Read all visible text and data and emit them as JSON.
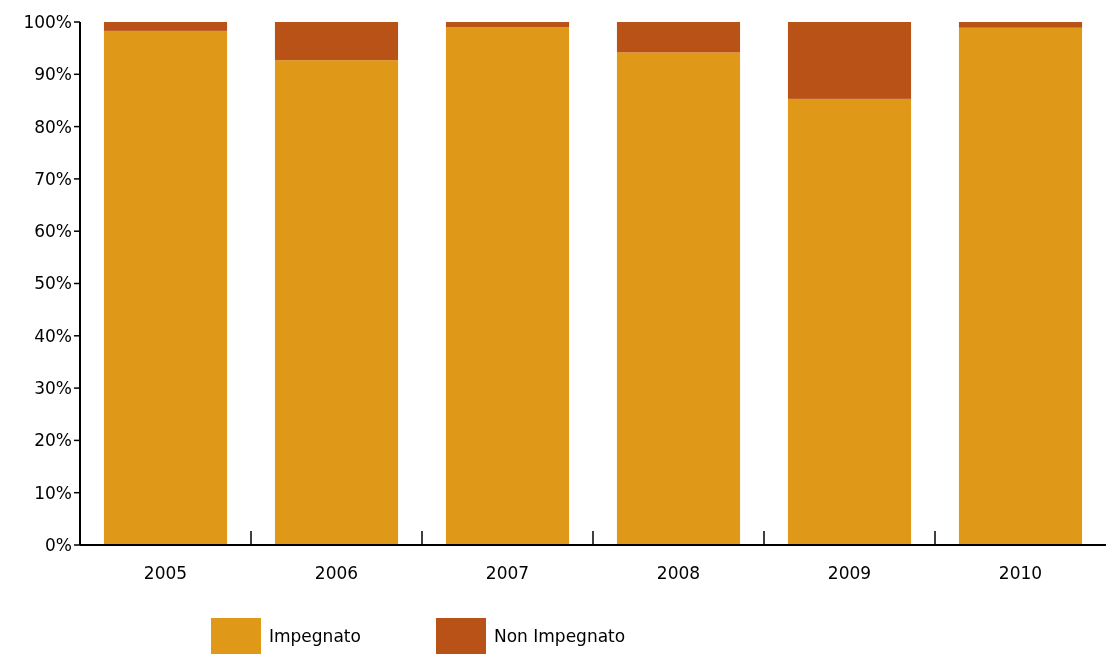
{
  "chart_data": {
    "type": "bar",
    "stacked": true,
    "categories": [
      "2005",
      "2006",
      "2007",
      "2008",
      "2009",
      "2010"
    ],
    "series": [
      {
        "name": "Impegnato",
        "color": "#e09818",
        "values": [
          98.3,
          92.7,
          99,
          94.2,
          85.3,
          98.9
        ]
      },
      {
        "name": "Non Impegnato",
        "color": "#b95217",
        "values": [
          1.7,
          7.3,
          1,
          5.8,
          14.7,
          1.1
        ]
      }
    ],
    "ylim": [
      0,
      100
    ],
    "yticks": [
      {
        "value": 0,
        "label": "0%"
      },
      {
        "value": 10,
        "label": "10%"
      },
      {
        "value": 20,
        "label": "20%"
      },
      {
        "value": 30,
        "label": "30%"
      },
      {
        "value": 40,
        "label": "40%"
      },
      {
        "value": 50,
        "label": "50%"
      },
      {
        "value": 60,
        "label": "60%"
      },
      {
        "value": 70,
        "label": "70%"
      },
      {
        "value": 80,
        "label": "80%"
      },
      {
        "value": 90,
        "label": "90%"
      },
      {
        "value": 100,
        "label": "100%"
      }
    ],
    "grid": false,
    "legend": "bottom"
  }
}
